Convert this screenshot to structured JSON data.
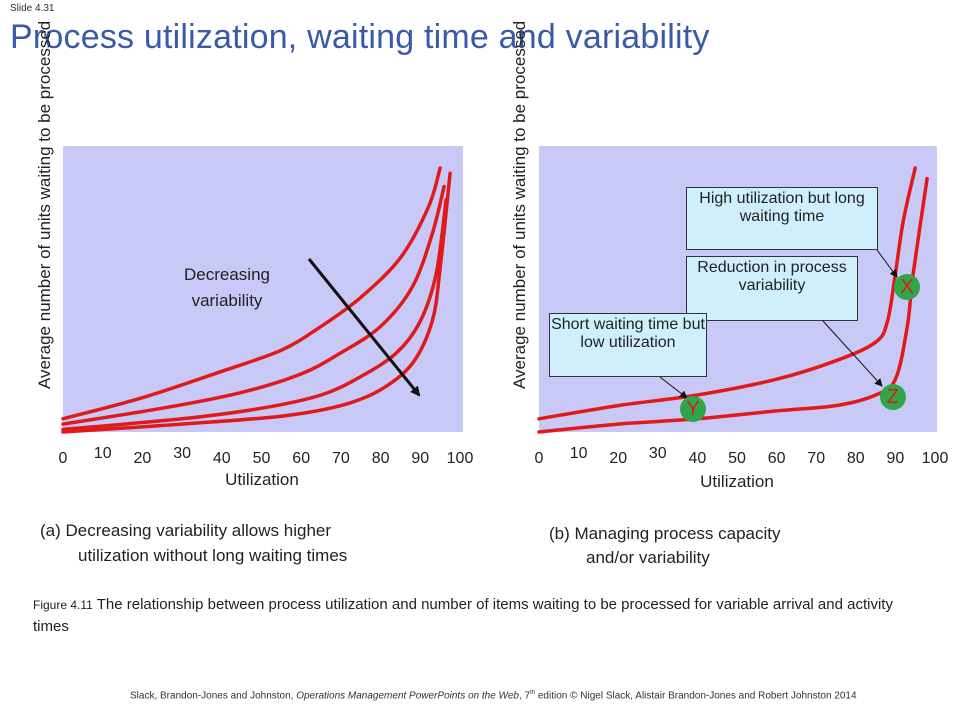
{
  "slide_number": "Slide 4.31",
  "title": "Process utilization, waiting time and variability",
  "colors": {
    "plot_bg": "#c9c9f7",
    "curve": "#e01a1a",
    "title": "#3a5aa8",
    "callout_bg": "#cfeffc",
    "marker": "#2fa64a"
  },
  "chart_data": [
    {
      "type": "line",
      "ylabel": "Average number of units waiting to be processed",
      "xlabel": "Utilization",
      "x_ticks": [
        "0",
        "10",
        "20",
        "30",
        "40",
        "50",
        "60",
        "70",
        "80",
        "90",
        "100"
      ],
      "xlim": [
        0,
        100
      ],
      "annotation": "Decreasing variability",
      "series": [
        {
          "x": [
            0,
            20,
            40,
            55,
            65,
            75,
            85,
            92,
            95
          ],
          "y": [
            0.05,
            0.13,
            0.23,
            0.31,
            0.4,
            0.51,
            0.66,
            0.85,
            1.0
          ]
        },
        {
          "x": [
            0,
            25,
            45,
            60,
            70,
            80,
            88,
            93,
            96
          ],
          "y": [
            0.03,
            0.09,
            0.15,
            0.22,
            0.3,
            0.4,
            0.55,
            0.75,
            0.93
          ]
        },
        {
          "x": [
            0,
            30,
            50,
            65,
            75,
            84,
            90,
            94,
            96.5
          ],
          "y": [
            0.01,
            0.05,
            0.09,
            0.14,
            0.21,
            0.3,
            0.42,
            0.6,
            0.88
          ]
        },
        {
          "x": [
            0,
            30,
            55,
            70,
            80,
            88,
            93,
            95,
            97.5
          ],
          "y": [
            0.0,
            0.03,
            0.06,
            0.1,
            0.16,
            0.26,
            0.42,
            0.62,
            0.98
          ]
        }
      ]
    },
    {
      "type": "line",
      "ylabel": "Average number of units waiting to be processed",
      "xlabel": "Utilization",
      "x_ticks": [
        "0",
        "10",
        "20",
        "30",
        "40",
        "50",
        "60",
        "70",
        "80",
        "90",
        "100"
      ],
      "xlim": [
        0,
        100
      ],
      "series": [
        {
          "x": [
            0,
            20,
            40,
            60,
            75,
            85,
            88,
            90,
            92,
            95
          ],
          "y": [
            0.05,
            0.1,
            0.14,
            0.2,
            0.27,
            0.34,
            0.42,
            0.6,
            0.8,
            1.0
          ]
        },
        {
          "x": [
            0,
            20,
            40,
            60,
            75,
            85,
            90,
            93,
            94.5,
            98
          ],
          "y": [
            0.0,
            0.03,
            0.05,
            0.08,
            0.1,
            0.14,
            0.2,
            0.4,
            0.6,
            0.96
          ]
        }
      ],
      "markers": [
        {
          "label": "Y",
          "x": 38,
          "y": 0.12
        },
        {
          "label": "Z",
          "x": 89,
          "y": 0.12
        },
        {
          "label": "X",
          "x": 92,
          "y": 0.54
        }
      ],
      "callouts": [
        {
          "text": "High utilization but long waiting time"
        },
        {
          "text": "Reduction in process variability"
        },
        {
          "text": "Short waiting time but low utilization"
        }
      ]
    }
  ],
  "captions": {
    "a_line1": "(a) Decreasing variability allows higher",
    "a_line2": "utilization without long waiting times",
    "b_line1": "(b) Managing process capacity",
    "b_line2": "and/or variability"
  },
  "figure_caption": {
    "number": "Figure 4.11",
    "text": "The relationship between process utilization and number of items waiting to be processed for variable arrival and activity times"
  },
  "footer": {
    "authors": "Slack, Brandon-Jones and Johnston, ",
    "work": "Operations Management PowerPoints on the Web",
    "edition_pre": ", 7",
    "edition_sup": "th",
    "edition_post": " edition © Nigel Slack, Alistair Brandon-Jones and Robert Johnston 2014"
  }
}
